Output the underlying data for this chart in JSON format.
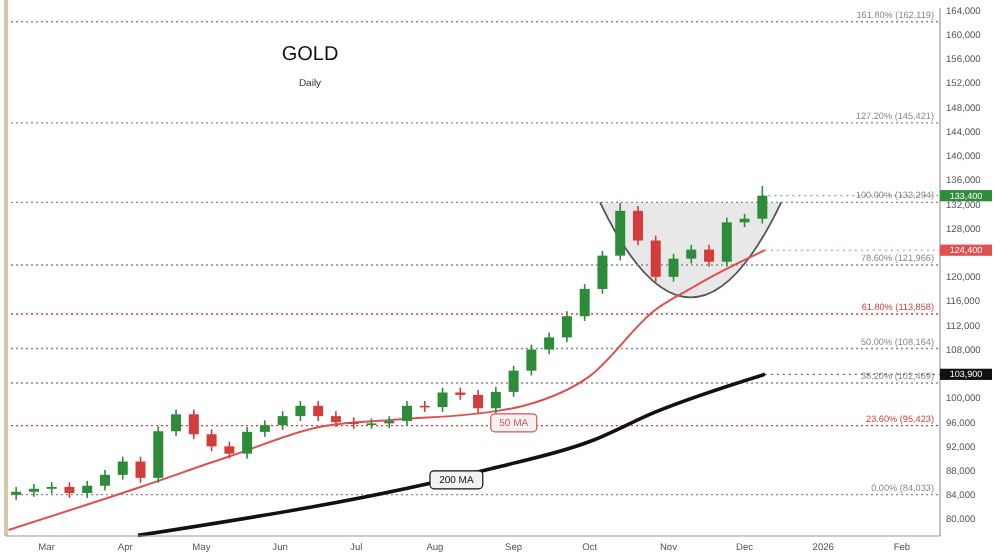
{
  "chart_data": {
    "type": "candlestick",
    "title": "GOLD",
    "subtitle": "Daily",
    "x": [
      "2025-02-17",
      "2025-02-24",
      "2025-03-03",
      "2025-03-10",
      "2025-03-17",
      "2025-03-24",
      "2025-03-31",
      "2025-04-07",
      "2025-04-14",
      "2025-04-21",
      "2025-04-28",
      "2025-05-05",
      "2025-05-12",
      "2025-05-19",
      "2025-05-26",
      "2025-06-02",
      "2025-06-09",
      "2025-06-16",
      "2025-06-23",
      "2025-06-30",
      "2025-07-07",
      "2025-07-14",
      "2025-07-21",
      "2025-07-28",
      "2025-08-04",
      "2025-08-11",
      "2025-08-18",
      "2025-08-25",
      "2025-09-01",
      "2025-09-08",
      "2025-09-15",
      "2025-09-22",
      "2025-09-29",
      "2025-10-06",
      "2025-10-13",
      "2025-10-20",
      "2025-10-27",
      "2025-11-03",
      "2025-11-10",
      "2025-11-17",
      "2025-11-24",
      "2025-12-01",
      "2025-12-08"
    ],
    "ohlc": [
      [
        84000,
        85300,
        83200,
        84500
      ],
      [
        84500,
        85800,
        83700,
        85000
      ],
      [
        85000,
        86100,
        84200,
        85300
      ],
      [
        85300,
        86100,
        83500,
        84300
      ],
      [
        84300,
        86300,
        83500,
        85500
      ],
      [
        85500,
        88100,
        84700,
        87300
      ],
      [
        87300,
        90300,
        86500,
        89500
      ],
      [
        89500,
        90300,
        86000,
        86800
      ],
      [
        86800,
        95300,
        86000,
        94500
      ],
      [
        94500,
        98100,
        93700,
        97300
      ],
      [
        97300,
        98100,
        93200,
        94000
      ],
      [
        94000,
        94800,
        91200,
        92000
      ],
      [
        92000,
        92800,
        90000,
        90800
      ],
      [
        90800,
        95200,
        90000,
        94400
      ],
      [
        94400,
        96300,
        93600,
        95500
      ],
      [
        95500,
        97800,
        94700,
        97000
      ],
      [
        97000,
        99500,
        96200,
        98700
      ],
      [
        98700,
        99500,
        96200,
        97000
      ],
      [
        97000,
        97800,
        95200,
        96000
      ],
      [
        96000,
        96800,
        94900,
        95700
      ],
      [
        95700,
        96600,
        94900,
        95800
      ],
      [
        95800,
        97000,
        95000,
        96200
      ],
      [
        96200,
        99500,
        95400,
        98700
      ],
      [
        98700,
        99500,
        97700,
        98500
      ],
      [
        98500,
        101700,
        97700,
        100900
      ],
      [
        100900,
        101700,
        99700,
        100500
      ],
      [
        100500,
        101300,
        97500,
        98300
      ],
      [
        98300,
        101800,
        97500,
        101000
      ],
      [
        101000,
        105300,
        100200,
        104500
      ],
      [
        104500,
        108800,
        103700,
        108000
      ],
      [
        108000,
        110800,
        107200,
        110000
      ],
      [
        110000,
        114300,
        109200,
        113500
      ],
      [
        113500,
        118800,
        112700,
        118000
      ],
      [
        118000,
        124300,
        117200,
        123500
      ],
      [
        123500,
        132200,
        122700,
        130900
      ],
      [
        130900,
        131700,
        125200,
        126000
      ],
      [
        126000,
        126800,
        119200,
        120000
      ],
      [
        120000,
        123800,
        119200,
        123000
      ],
      [
        123000,
        125300,
        122200,
        124500
      ],
      [
        124500,
        125300,
        121700,
        122500
      ],
      [
        122500,
        129800,
        121700,
        129000
      ],
      [
        129000,
        130400,
        128200,
        129600
      ],
      [
        129600,
        135000,
        128800,
        133400
      ]
    ],
    "series": [
      {
        "name": "50 MA",
        "type": "line",
        "color": "#e05050",
        "x": [
          "2025-02-14",
          "2025-04-07",
          "2025-05-11",
          "2025-06-19",
          "2025-07-16",
          "2025-08-23",
          "2025-09-05",
          "2025-10-01",
          "2025-10-27",
          "2025-11-09",
          "2025-11-17",
          "2025-12-09"
        ],
        "values": [
          78200,
          85300,
          90200,
          95400,
          96400,
          97700,
          98700,
          103600,
          114600,
          117900,
          119800,
          124400
        ]
      },
      {
        "name": "200 MA",
        "type": "line",
        "color": "#111111",
        "x": [
          "2025-04-06",
          "2025-08-23",
          "2025-10-01",
          "2025-10-27",
          "2025-12-09"
        ],
        "values": [
          77300,
          88300,
          92800,
          97700,
          103900
        ]
      }
    ],
    "xlim": [
      "2025-02-13",
      "2026-02-16"
    ],
    "xticks": [
      {
        "value": "2025-03-01",
        "label": "Mar"
      },
      {
        "value": "2025-04-01",
        "label": "Apr"
      },
      {
        "value": "2025-05-01",
        "label": "May"
      },
      {
        "value": "2025-06-01",
        "label": "Jun"
      },
      {
        "value": "2025-07-01",
        "label": "Jul"
      },
      {
        "value": "2025-08-01",
        "label": "Aug"
      },
      {
        "value": "2025-09-01",
        "label": "Sep"
      },
      {
        "value": "2025-10-01",
        "label": "Oct"
      },
      {
        "value": "2025-11-01",
        "label": "Nov"
      },
      {
        "value": "2025-12-01",
        "label": "Dec"
      },
      {
        "value": "2026-01-01",
        "label": "2026"
      },
      {
        "value": "2026-02-01",
        "label": "Feb"
      }
    ],
    "ylim": [
      77200,
      164400
    ],
    "yticks": [
      {
        "value": 80000,
        "label": "80,000"
      },
      {
        "value": 84000,
        "label": "84,000"
      },
      {
        "value": 88000,
        "label": "88,000"
      },
      {
        "value": 92000,
        "label": "92,000"
      },
      {
        "value": 96000,
        "label": "96,000"
      },
      {
        "value": 100000,
        "label": "100,000"
      },
      {
        "value": 108000,
        "label": "108,000"
      },
      {
        "value": 112000,
        "label": "112,000"
      },
      {
        "value": 116000,
        "label": "116,000"
      },
      {
        "value": 120000,
        "label": "120,000"
      },
      {
        "value": 128000,
        "label": "128,000"
      },
      {
        "value": 132000,
        "label": "132,000"
      },
      {
        "value": 136000,
        "label": "136,000"
      },
      {
        "value": 140000,
        "label": "140,000"
      },
      {
        "value": 144000,
        "label": "144,000"
      },
      {
        "value": 148000,
        "label": "148,000"
      },
      {
        "value": 152000,
        "label": "152,000"
      },
      {
        "value": 156000,
        "label": "156,000"
      },
      {
        "value": 160000,
        "label": "160,000"
      },
      {
        "value": 164000,
        "label": "164,000"
      }
    ],
    "ref_lines": [
      {
        "axis": "y",
        "value": 162119,
        "label": "161.80% (162,119)",
        "color": "#888888",
        "line_style": "dotted"
      },
      {
        "axis": "y",
        "value": 145421,
        "label": "127.20% (145,421)",
        "color": "#888888",
        "line_style": "dotted"
      },
      {
        "axis": "y",
        "value": 132294,
        "label": "100.00% (132,294)",
        "color": "#888888",
        "line_style": "dotted"
      },
      {
        "axis": "y",
        "value": 121966,
        "label": "78.60% (121,966)",
        "color": "#888888",
        "line_style": "dotted"
      },
      {
        "axis": "y",
        "value": 113858,
        "label": "61.80% (113,858)",
        "color": "#d04040",
        "line_style": "dotted"
      },
      {
        "axis": "y",
        "value": 108164,
        "label": "50.00% (108,164)",
        "color": "#888888",
        "line_style": "dotted"
      },
      {
        "axis": "y",
        "value": 102469,
        "label": "38.20% (102,469)",
        "color": "#888888",
        "line_style": "dotted"
      },
      {
        "axis": "y",
        "value": 95423,
        "label": "23.60% (95,423)",
        "color": "#d04040",
        "line_style": "dotted"
      },
      {
        "axis": "y",
        "value": 84033,
        "label": "0.00% (84,033)",
        "color": "#888888",
        "line_style": "dotted"
      }
    ],
    "annotations": [
      {
        "text": "133,400",
        "x": "2025-12-08",
        "y": 133400
      },
      {
        "text": "124,400",
        "x": "2025-12-09",
        "y": 124400
      },
      {
        "text": "103,900",
        "x": "2025-12-09",
        "y": 103900
      }
    ],
    "grid": false
  }
}
